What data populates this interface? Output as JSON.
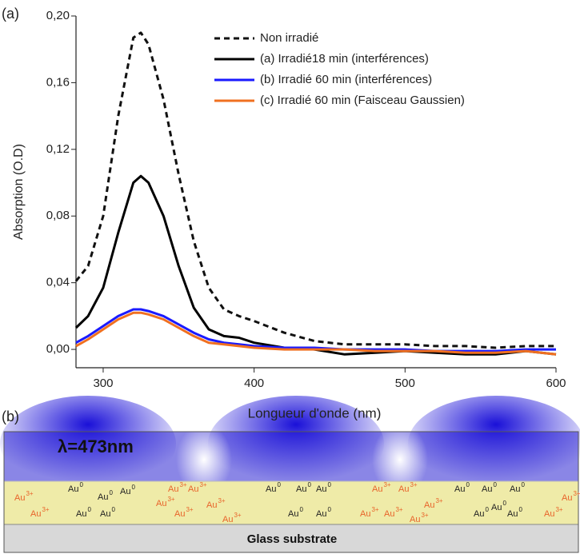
{
  "chart_data": {
    "type": "line",
    "panel_label": "(a)",
    "x_label": "Longueur d'onde (nm)",
    "y_label": "Absorption (O.D)",
    "xlim": [
      282,
      600
    ],
    "ylim": [
      -0.011,
      0.2
    ],
    "xticks": [
      300,
      400,
      500,
      600
    ],
    "yticks": [
      {
        "value": 0,
        "label": "0,00"
      },
      {
        "value": 0.04,
        "label": "0,04"
      },
      {
        "value": 0.08,
        "label": "0,08"
      },
      {
        "value": 0.12,
        "label": "0,12"
      },
      {
        "value": 0.16,
        "label": "0,16"
      },
      {
        "value": 0.2,
        "label": "0,20"
      }
    ],
    "grid": false,
    "legend": "upper right",
    "x": [
      282,
      290,
      300,
      310,
      320,
      325,
      330,
      340,
      350,
      360,
      370,
      380,
      390,
      400,
      420,
      440,
      460,
      480,
      500,
      520,
      540,
      560,
      580,
      600
    ],
    "series": [
      {
        "name": "Non irradié",
        "color": "#111111",
        "line_style": "dashed",
        "values": [
          0.041,
          0.05,
          0.08,
          0.14,
          0.187,
          0.19,
          0.183,
          0.15,
          0.105,
          0.065,
          0.037,
          0.024,
          0.02,
          0.017,
          0.01,
          0.005,
          0.003,
          0.003,
          0.003,
          0.002,
          0.002,
          0.001,
          0.002,
          0.002
        ]
      },
      {
        "name": "(a) Irradié18 min (interférences)",
        "color": "#000000",
        "line_style": "solid",
        "values": [
          0.013,
          0.02,
          0.037,
          0.07,
          0.1,
          0.104,
          0.1,
          0.08,
          0.05,
          0.025,
          0.012,
          0.008,
          0.007,
          0.004,
          0.001,
          0.0,
          -0.003,
          -0.002,
          -0.001,
          -0.002,
          -0.003,
          -0.003,
          -0.001,
          -0.003
        ]
      },
      {
        "name": "(b) Irradié 60 min (interférences)",
        "color": "#1a1aff",
        "line_style": "solid",
        "values": [
          0.004,
          0.008,
          0.014,
          0.02,
          0.024,
          0.024,
          0.023,
          0.02,
          0.015,
          0.01,
          0.006,
          0.004,
          0.003,
          0.002,
          0.001,
          0.001,
          0.0,
          0.0,
          0.0,
          -0.001,
          -0.001,
          -0.001,
          0.0,
          0.0
        ]
      },
      {
        "name": "(c) Irradié 60 min (Faisceau Gaussien)",
        "color": "#f07020",
        "line_style": "solid",
        "values": [
          0.002,
          0.006,
          0.012,
          0.018,
          0.022,
          0.022,
          0.021,
          0.018,
          0.013,
          0.008,
          0.004,
          0.003,
          0.002,
          0.001,
          0.0,
          0.0,
          0.0,
          -0.001,
          -0.001,
          -0.001,
          -0.002,
          -0.002,
          -0.001,
          -0.003
        ]
      }
    ]
  },
  "panel_b": {
    "label": "(b)",
    "wavelength": "λ=473nm",
    "substrate": "Glass substrate",
    "ions": [
      {
        "symbol": "Au",
        "charge": "3+"
      },
      {
        "symbol": "Au",
        "charge": "3+"
      },
      {
        "symbol": "Au",
        "charge": "0"
      },
      {
        "symbol": "Au",
        "charge": "0"
      },
      {
        "symbol": "Au",
        "charge": "0"
      },
      {
        "symbol": "Au",
        "charge": "0"
      },
      {
        "symbol": "Au",
        "charge": "0"
      },
      {
        "symbol": "Au",
        "charge": "3+"
      },
      {
        "symbol": "Au",
        "charge": "3+"
      },
      {
        "symbol": "Au",
        "charge": "3+"
      },
      {
        "symbol": "Au",
        "charge": "3+"
      },
      {
        "symbol": "Au",
        "charge": "3+"
      },
      {
        "symbol": "Au",
        "charge": "3+"
      },
      {
        "symbol": "Au",
        "charge": "0"
      },
      {
        "symbol": "Au",
        "charge": "0"
      },
      {
        "symbol": "Au",
        "charge": "0"
      },
      {
        "symbol": "Au",
        "charge": "0"
      },
      {
        "symbol": "Au",
        "charge": "0"
      },
      {
        "symbol": "Au",
        "charge": "3+"
      },
      {
        "symbol": "Au",
        "charge": "3+"
      },
      {
        "symbol": "Au",
        "charge": "3+"
      },
      {
        "symbol": "Au",
        "charge": "3+"
      },
      {
        "symbol": "Au",
        "charge": "3+"
      },
      {
        "symbol": "Au",
        "charge": "3+"
      },
      {
        "symbol": "Au",
        "charge": "0"
      },
      {
        "symbol": "Au",
        "charge": "0"
      },
      {
        "symbol": "Au",
        "charge": "0"
      },
      {
        "symbol": "Au",
        "charge": "0"
      },
      {
        "symbol": "Au",
        "charge": "0"
      },
      {
        "symbol": "Au",
        "charge": "0"
      },
      {
        "symbol": "Au",
        "charge": "3+"
      },
      {
        "symbol": "Au",
        "charge": "3+"
      }
    ]
  }
}
